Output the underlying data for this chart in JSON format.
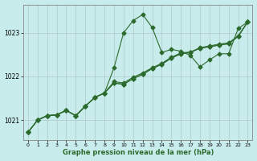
{
  "xlabel": "Graphe pression niveau de la mer (hPa)",
  "bg_color": "#c8ecec",
  "line_color": "#2d6a2d",
  "markersize": 2.5,
  "linewidth": 0.8,
  "xlim": [
    -0.5,
    23.5
  ],
  "ylim": [
    1020.55,
    1023.65
  ],
  "yticks": [
    1021,
    1022,
    1023
  ],
  "xticks": [
    0,
    1,
    2,
    3,
    4,
    5,
    6,
    7,
    8,
    9,
    10,
    11,
    12,
    13,
    14,
    15,
    16,
    17,
    18,
    19,
    20,
    21,
    22,
    23
  ],
  "series": [
    [
      1020.72,
      1021.0,
      1021.1,
      1021.12,
      1021.22,
      1021.1,
      1021.32,
      1021.52,
      1021.62,
      1022.2,
      1023.0,
      1023.28,
      1023.42,
      1023.12,
      1022.55,
      1022.62,
      1022.58,
      1022.48,
      1022.22,
      1022.38,
      1022.52,
      1022.52,
      1023.1,
      1023.25
    ],
    [
      1020.72,
      1021.0,
      1021.1,
      1021.12,
      1021.22,
      1021.1,
      1021.32,
      1021.52,
      1021.62,
      1021.85,
      1021.82,
      1021.95,
      1022.05,
      1022.18,
      1022.28,
      1022.42,
      1022.52,
      1022.55,
      1022.65,
      1022.68,
      1022.72,
      1022.75,
      1022.92,
      1023.25
    ],
    [
      1020.72,
      1021.0,
      1021.1,
      1021.12,
      1021.22,
      1021.1,
      1021.32,
      1021.52,
      1021.62,
      1021.85,
      1021.82,
      1021.95,
      1022.05,
      1022.18,
      1022.28,
      1022.42,
      1022.52,
      1022.55,
      1022.65,
      1022.68,
      1022.72,
      1022.75,
      1022.92,
      1023.25
    ],
    [
      1020.72,
      1021.0,
      1021.1,
      1021.12,
      1021.22,
      1021.1,
      1021.32,
      1021.52,
      1021.62,
      1021.88,
      1021.85,
      1021.98,
      1022.08,
      1022.2,
      1022.3,
      1022.44,
      1022.54,
      1022.56,
      1022.66,
      1022.7,
      1022.74,
      1022.77,
      1022.93,
      1023.25
    ]
  ]
}
